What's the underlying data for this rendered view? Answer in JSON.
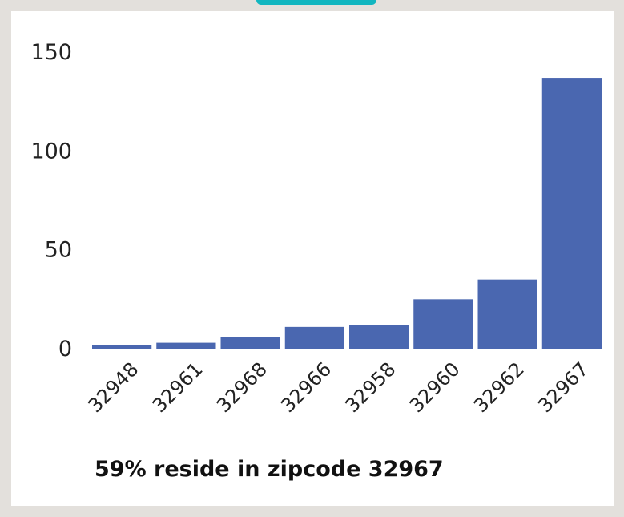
{
  "chart_data": {
    "type": "bar",
    "categories": [
      "32948",
      "32961",
      "32968",
      "32966",
      "32958",
      "32960",
      "32962",
      "32967"
    ],
    "values": [
      2,
      3,
      6,
      11,
      12,
      25,
      35,
      137
    ],
    "ylim": [
      0,
      150
    ],
    "yticks": [
      0,
      50,
      100,
      150
    ],
    "grid": false,
    "bar_color": "#4a67b0",
    "title": "",
    "xlabel": "",
    "ylabel": ""
  },
  "caption": "59% reside in zipcode 32967",
  "colors": {
    "frame": "#e3e0dc",
    "accent": "#12b6c0"
  }
}
